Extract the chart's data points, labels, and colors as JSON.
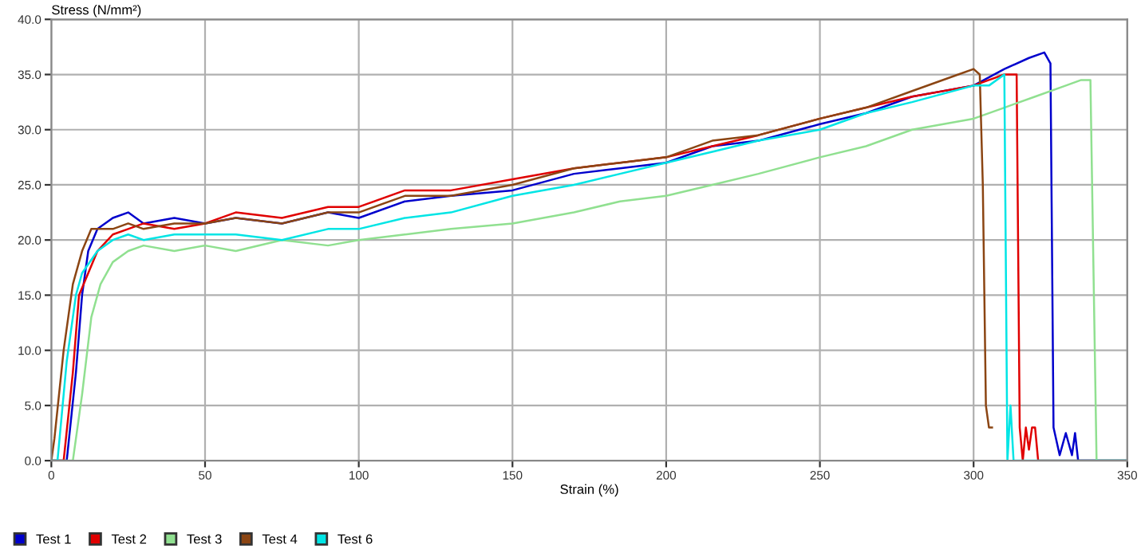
{
  "chart_data": {
    "type": "line",
    "xlabel": "Strain (%)",
    "ylabel": "Stress (N/mm²)",
    "xlim": [
      0,
      350
    ],
    "xticks": [
      0,
      50,
      100,
      150,
      200,
      250,
      300,
      350
    ],
    "ylim": [
      0,
      40
    ],
    "yticks": [
      {
        "value": 0,
        "label": "0.0"
      },
      {
        "value": 5,
        "label": "5.0"
      },
      {
        "value": 10,
        "label": "10.0"
      },
      {
        "value": 15,
        "label": "15.0"
      },
      {
        "value": 20,
        "label": "20.0"
      },
      {
        "value": 25,
        "label": "25.0"
      },
      {
        "value": 30,
        "label": "30.0"
      },
      {
        "value": 35,
        "label": "35.0"
      },
      {
        "value": 40,
        "label": "40.0"
      }
    ],
    "grid": true,
    "legend": "bottom left",
    "marker": "none",
    "line_style": "solid",
    "series": [
      {
        "name": "Test 1",
        "color": "#0000cc",
        "x": [
          0,
          5,
          8,
          10,
          12,
          15,
          20,
          25,
          30,
          40,
          50,
          60,
          75,
          90,
          100,
          115,
          130,
          150,
          170,
          185,
          200,
          215,
          230,
          250,
          265,
          280,
          300,
          310,
          318,
          323,
          325,
          326,
          328,
          330,
          332,
          333,
          334,
          350
        ],
        "values": [
          0,
          0,
          8,
          15,
          19,
          21,
          22,
          22.5,
          21.5,
          22,
          21.5,
          22,
          21.5,
          22.5,
          22,
          23.5,
          24,
          24.5,
          26,
          26.5,
          27,
          28.5,
          29,
          30.5,
          31.5,
          33,
          34,
          35.5,
          36.5,
          37,
          36,
          3,
          0.5,
          2.5,
          0.5,
          2.5,
          0,
          0
        ]
      },
      {
        "name": "Test 2",
        "color": "#e00000",
        "x": [
          0,
          4,
          7,
          9,
          12,
          15,
          20,
          25,
          30,
          40,
          50,
          60,
          75,
          90,
          100,
          115,
          130,
          150,
          170,
          185,
          200,
          215,
          230,
          250,
          265,
          280,
          300,
          305,
          310,
          314,
          315,
          316,
          317,
          318,
          319,
          320,
          321,
          350
        ],
        "values": [
          0,
          0,
          8,
          15,
          17,
          19,
          20.5,
          21,
          21.5,
          21,
          21.5,
          22.5,
          22,
          23,
          23,
          24.5,
          24.5,
          25.5,
          26.5,
          27,
          27.5,
          28.5,
          29.5,
          31,
          32,
          33,
          34,
          34.5,
          35,
          35,
          3,
          0,
          3,
          1,
          3,
          3,
          0,
          0
        ]
      },
      {
        "name": "Test 3",
        "color": "#90e090",
        "x": [
          0,
          7,
          10,
          13,
          16,
          20,
          25,
          30,
          40,
          50,
          60,
          75,
          90,
          100,
          115,
          130,
          150,
          170,
          185,
          200,
          215,
          230,
          250,
          265,
          280,
          300,
          310,
          320,
          330,
          335,
          338,
          340,
          341,
          350
        ],
        "values": [
          0,
          0,
          6,
          13,
          16,
          18,
          19,
          19.5,
          19,
          19.5,
          19,
          20,
          19.5,
          20,
          20.5,
          21,
          21.5,
          22.5,
          23.5,
          24,
          25,
          26,
          27.5,
          28.5,
          30,
          31,
          32,
          33,
          34,
          34.5,
          34.5,
          0,
          0,
          0
        ]
      },
      {
        "name": "Test 4",
        "color": "#8b4513",
        "x": [
          0,
          1,
          4,
          7,
          10,
          13,
          15,
          20,
          25,
          30,
          40,
          50,
          60,
          75,
          90,
          100,
          115,
          130,
          150,
          170,
          185,
          200,
          215,
          230,
          250,
          265,
          280,
          295,
          300,
          302,
          303,
          304,
          305,
          306
        ],
        "values": [
          0,
          2,
          10,
          16,
          19,
          21,
          21,
          21,
          21.5,
          21,
          21.5,
          21.5,
          22,
          21.5,
          22.5,
          22.5,
          24,
          24,
          25,
          26.5,
          27,
          27.5,
          29,
          29.5,
          31,
          32,
          33.5,
          35,
          35.5,
          35,
          25,
          5,
          3,
          3
        ]
      },
      {
        "name": "Test 6",
        "color": "#00e5e5",
        "x": [
          0,
          2,
          5,
          8,
          10,
          15,
          20,
          25,
          30,
          40,
          50,
          60,
          75,
          90,
          100,
          115,
          130,
          150,
          170,
          185,
          200,
          215,
          230,
          250,
          265,
          280,
          300,
          305,
          310,
          311,
          312,
          313,
          314,
          350
        ],
        "values": [
          0,
          0,
          9,
          15,
          17,
          19,
          20,
          20.5,
          20,
          20.5,
          20.5,
          20.5,
          20,
          21,
          21,
          22,
          22.5,
          24,
          25,
          26,
          27,
          28,
          29,
          30,
          31.5,
          32.5,
          34,
          34,
          35,
          0,
          5,
          0,
          0,
          0
        ]
      }
    ]
  }
}
